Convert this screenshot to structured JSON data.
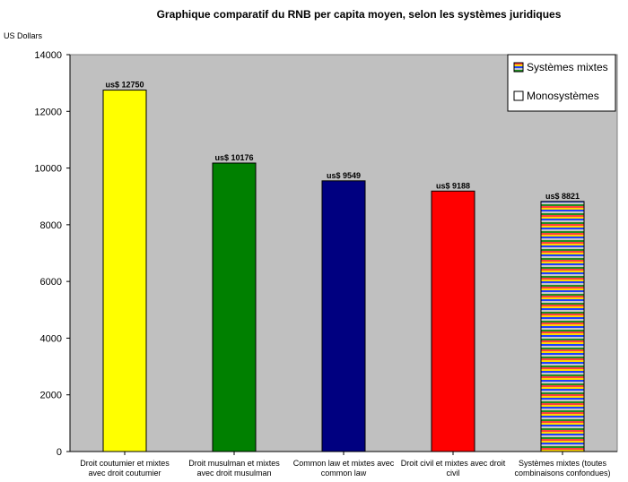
{
  "chart_data": {
    "type": "bar",
    "title": "Graphique comparatif du RNB per capita moyen, selon les systèmes juridiques",
    "ylabel": "US Dollars",
    "xlabel": "",
    "ylim": [
      0,
      14000
    ],
    "yticks": [
      0,
      2000,
      4000,
      6000,
      8000,
      10000,
      12000,
      14000
    ],
    "grid": false,
    "plot_background": "#c0c0c0",
    "categories": [
      [
        "Droit coutumier et mixtes",
        "avec droit coutumier"
      ],
      [
        "Droit musulman et mixtes",
        "avec droit musulman"
      ],
      [
        "Common law et mixtes avec",
        "common law"
      ],
      [
        "Droit civil et mixtes avec droit",
        "civil"
      ],
      [
        "Systèmes mixtes (toutes",
        "combinaisons confondues)"
      ]
    ],
    "values": [
      12750,
      10176,
      9549,
      9188,
      8821
    ],
    "data_labels": [
      "us$ 12750",
      "us$ 10176",
      "us$ 9549",
      "us$ 9188",
      "us$ 8821"
    ],
    "bar_colors": [
      "#ffff00",
      "#008000",
      "#000080",
      "#ff0000",
      "striped"
    ],
    "stripe_colors": [
      "#ff4040",
      "#ffd700",
      "#1e40ff",
      "#c8c8c8",
      "#228b22"
    ],
    "legend": {
      "position": "top-right",
      "entries": [
        {
          "label": "Systèmes mixtes",
          "swatch": "striped"
        },
        {
          "label": "Monosystèmes",
          "swatch": "#ffffff"
        }
      ]
    }
  }
}
